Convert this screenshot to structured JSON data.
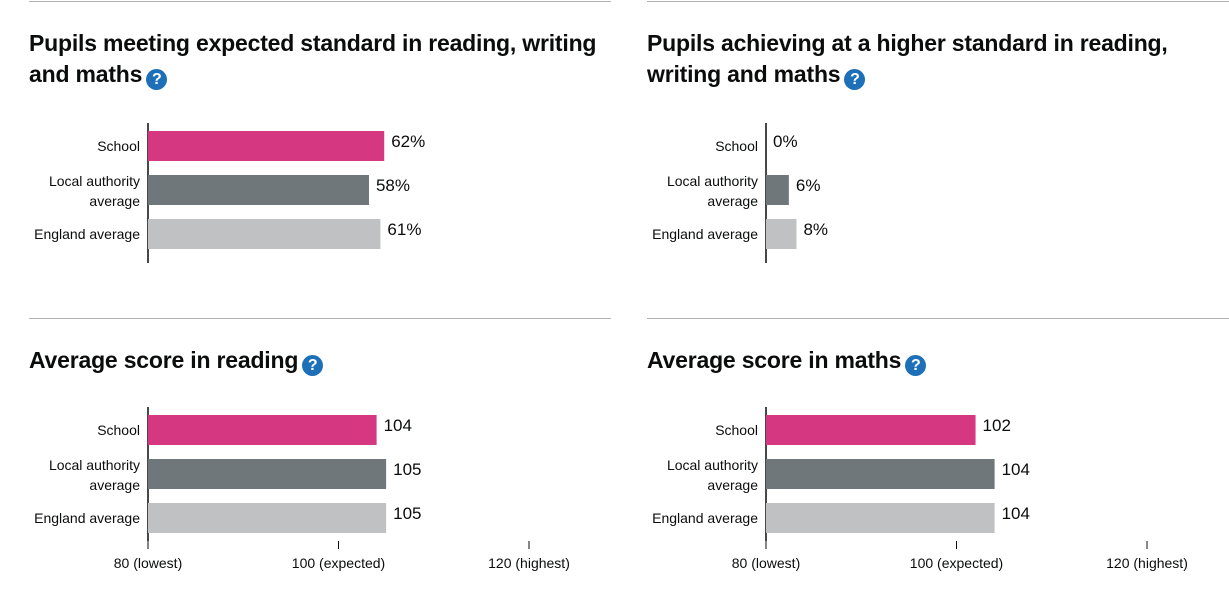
{
  "colors": {
    "school": "#d53880",
    "local": "#6f777b",
    "england": "#bfc1c3",
    "axis": "#0b0c0c",
    "help_icon": "#1d70b8"
  },
  "help_icon_glyph": "?",
  "chart_data": [
    {
      "type": "bar",
      "orientation": "horizontal",
      "title": "Pupils meeting expected standard in reading, writing and maths",
      "categories": [
        "School",
        "Local authority average",
        "England average"
      ],
      "category_lines": [
        [
          "School"
        ],
        [
          "Local authority",
          "average"
        ],
        [
          "England average"
        ]
      ],
      "values": [
        62,
        58,
        61
      ],
      "value_labels": [
        "62%",
        "58%",
        "61%"
      ],
      "xlim": [
        0,
        100
      ],
      "ticks": [],
      "grid": false,
      "legend": "none"
    },
    {
      "type": "bar",
      "orientation": "horizontal",
      "title": "Pupils achieving at a higher standard in reading, writing and maths",
      "categories": [
        "School",
        "Local authority average",
        "England average"
      ],
      "category_lines": [
        [
          "School"
        ],
        [
          "Local authority",
          "average"
        ],
        [
          "England average"
        ]
      ],
      "values": [
        0,
        6,
        8
      ],
      "value_labels": [
        "0%",
        "6%",
        "8%"
      ],
      "xlim": [
        0,
        100
      ],
      "ticks": [],
      "grid": false,
      "legend": "none"
    },
    {
      "type": "bar",
      "orientation": "horizontal",
      "title": "Average score in reading",
      "categories": [
        "School",
        "Local authority average",
        "England average"
      ],
      "category_lines": [
        [
          "School"
        ],
        [
          "Local authority",
          "average"
        ],
        [
          "England average"
        ]
      ],
      "values": [
        104,
        105,
        105
      ],
      "value_labels": [
        "104",
        "105",
        "105"
      ],
      "xlim": [
        80,
        120
      ],
      "ticks": [
        {
          "value": 80,
          "label": "80 (lowest)"
        },
        {
          "value": 100,
          "label": "100 (expected)"
        },
        {
          "value": 120,
          "label": "120 (highest)"
        }
      ],
      "grid": false,
      "legend": "none"
    },
    {
      "type": "bar",
      "orientation": "horizontal",
      "title": "Average score in maths",
      "categories": [
        "School",
        "Local authority average",
        "England average"
      ],
      "category_lines": [
        [
          "School"
        ],
        [
          "Local authority",
          "average"
        ],
        [
          "England average"
        ]
      ],
      "values": [
        102,
        104,
        104
      ],
      "value_labels": [
        "102",
        "104",
        "104"
      ],
      "xlim": [
        80,
        120
      ],
      "ticks": [
        {
          "value": 80,
          "label": "80 (lowest)"
        },
        {
          "value": 100,
          "label": "100 (expected)"
        },
        {
          "value": 120,
          "label": "120 (highest)"
        }
      ],
      "grid": false,
      "legend": "none"
    }
  ]
}
